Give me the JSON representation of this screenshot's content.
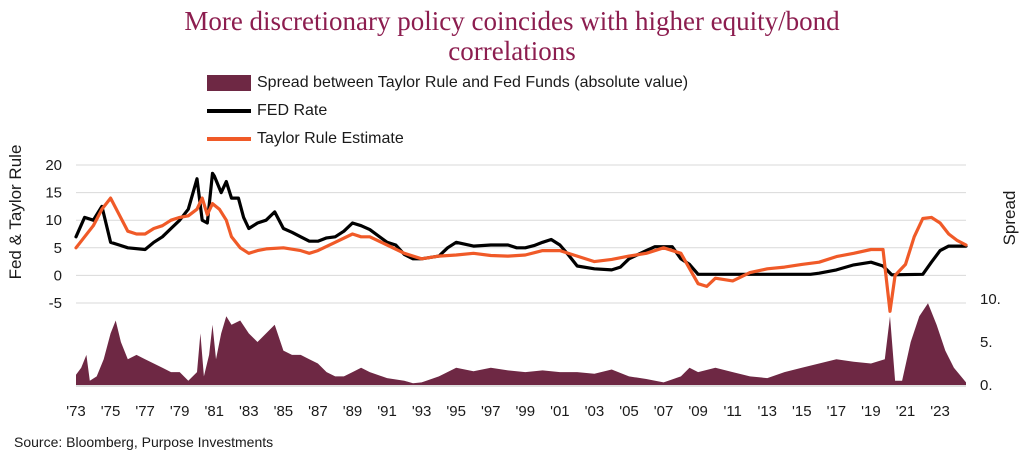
{
  "title": [
    "More discretionary policy coincides with higher equity/bond",
    "correlations"
  ],
  "source": "Source: Bloomberg, Purpose Investments",
  "colors": {
    "title": "#8c1d4f",
    "spread": "#6e2844",
    "fed": "#000000",
    "taylor": "#f05a28"
  },
  "legend": [
    {
      "key": "spread",
      "label": "Spread between Taylor Rule and Fed Funds (absolute value)",
      "kind": "area"
    },
    {
      "key": "fed",
      "label": "FED Rate",
      "kind": "line"
    },
    {
      "key": "taylor",
      "label": "Taylor Rule Estimate",
      "kind": "line"
    }
  ],
  "chart_data": {
    "type": "line",
    "left_axis": {
      "title": "Fed & Taylor Rule",
      "ticks": [
        "20",
        "15",
        "10",
        "5",
        "0",
        "-5"
      ],
      "range": [
        -5,
        20
      ]
    },
    "right_axis": {
      "title": "Spread",
      "ticks": [
        "10.",
        "5.",
        "0."
      ],
      "range": [
        0,
        10
      ]
    },
    "x_ticks": [
      "'73",
      "'75",
      "'77",
      "'79",
      "'81",
      "'83",
      "'85",
      "'87",
      "'89",
      "'91",
      "'93",
      "'95",
      "'97",
      "'99",
      "'01",
      "'03",
      "'05",
      "'07",
      "'09",
      "'11",
      "'13",
      "'15",
      "'17",
      "'19",
      "'21",
      "'23"
    ],
    "x_range": [
      1973,
      2024.5
    ],
    "series": [
      {
        "name": "FED Rate",
        "key": "fed",
        "points": [
          [
            1973,
            7
          ],
          [
            1973.5,
            10.5
          ],
          [
            1974,
            10
          ],
          [
            1974.5,
            12.5
          ],
          [
            1975,
            6
          ],
          [
            1975.5,
            5.5
          ],
          [
            1976,
            5
          ],
          [
            1977,
            4.7
          ],
          [
            1977.5,
            6
          ],
          [
            1978,
            7
          ],
          [
            1978.5,
            8.5
          ],
          [
            1979,
            10
          ],
          [
            1979.5,
            12
          ],
          [
            1980,
            17.5
          ],
          [
            1980.3,
            10
          ],
          [
            1980.6,
            9.5
          ],
          [
            1980.9,
            18.5
          ],
          [
            1981,
            18
          ],
          [
            1981.4,
            15
          ],
          [
            1981.7,
            17
          ],
          [
            1982,
            14
          ],
          [
            1982.4,
            14
          ],
          [
            1982.7,
            10.5
          ],
          [
            1983,
            8.5
          ],
          [
            1983.5,
            9.5
          ],
          [
            1984,
            10
          ],
          [
            1984.5,
            11.5
          ],
          [
            1985,
            8.5
          ],
          [
            1985.5,
            7.8
          ],
          [
            1986,
            7
          ],
          [
            1986.5,
            6.2
          ],
          [
            1987,
            6.2
          ],
          [
            1987.5,
            6.8
          ],
          [
            1988,
            7
          ],
          [
            1988.5,
            8
          ],
          [
            1989,
            9.5
          ],
          [
            1989.5,
            9
          ],
          [
            1990,
            8.3
          ],
          [
            1991,
            6
          ],
          [
            1991.5,
            5.5
          ],
          [
            1992,
            3.8
          ],
          [
            1992.5,
            3
          ],
          [
            1993,
            3
          ],
          [
            1994,
            3.5
          ],
          [
            1994.5,
            5
          ],
          [
            1995,
            6
          ],
          [
            1996,
            5.3
          ],
          [
            1997,
            5.5
          ],
          [
            1998,
            5.5
          ],
          [
            1998.5,
            5
          ],
          [
            1999,
            5
          ],
          [
            1999.5,
            5.4
          ],
          [
            2000,
            6
          ],
          [
            2000.5,
            6.5
          ],
          [
            2001,
            5.5
          ],
          [
            2001.5,
            3.7
          ],
          [
            2002,
            1.7
          ],
          [
            2003,
            1.2
          ],
          [
            2004,
            1
          ],
          [
            2004.5,
            1.5
          ],
          [
            2005,
            3
          ],
          [
            2006,
            4.5
          ],
          [
            2006.5,
            5.2
          ],
          [
            2007.5,
            5.2
          ],
          [
            2008,
            3
          ],
          [
            2008.5,
            2
          ],
          [
            2009,
            0.2
          ],
          [
            2015.5,
            0.2
          ],
          [
            2016,
            0.4
          ],
          [
            2017,
            1
          ],
          [
            2018,
            1.9
          ],
          [
            2019,
            2.4
          ],
          [
            2019.7,
            1.7
          ],
          [
            2020.2,
            0.1
          ],
          [
            2022,
            0.2
          ],
          [
            2022.5,
            2.4
          ],
          [
            2023,
            4.5
          ],
          [
            2023.5,
            5.3
          ],
          [
            2024.5,
            5.3
          ]
        ]
      },
      {
        "name": "Taylor Rule Estimate",
        "key": "taylor",
        "points": [
          [
            1973,
            5
          ],
          [
            1973.5,
            7
          ],
          [
            1974,
            9
          ],
          [
            1974.5,
            12
          ],
          [
            1975,
            14
          ],
          [
            1975.5,
            11
          ],
          [
            1976,
            8
          ],
          [
            1976.5,
            7.5
          ],
          [
            1977,
            7.5
          ],
          [
            1977.5,
            8.5
          ],
          [
            1978,
            9
          ],
          [
            1978.5,
            10
          ],
          [
            1979,
            10.5
          ],
          [
            1979.5,
            10.8
          ],
          [
            1980,
            12
          ],
          [
            1980.3,
            14
          ],
          [
            1980.6,
            11
          ],
          [
            1980.9,
            13
          ],
          [
            1981.3,
            12
          ],
          [
            1981.7,
            10
          ],
          [
            1982,
            7
          ],
          [
            1982.5,
            5
          ],
          [
            1983,
            4
          ],
          [
            1983.5,
            4.5
          ],
          [
            1984,
            4.8
          ],
          [
            1985,
            5
          ],
          [
            1986,
            4.5
          ],
          [
            1986.5,
            4
          ],
          [
            1987,
            4.5
          ],
          [
            1988,
            6
          ],
          [
            1989,
            7.5
          ],
          [
            1989.5,
            7
          ],
          [
            1990,
            7
          ],
          [
            1991,
            5.5
          ],
          [
            1992,
            4
          ],
          [
            1993,
            3
          ],
          [
            1994,
            3.5
          ],
          [
            1995,
            3.7
          ],
          [
            1996,
            4
          ],
          [
            1997,
            3.6
          ],
          [
            1998,
            3.5
          ],
          [
            1999,
            3.7
          ],
          [
            2000,
            4.5
          ],
          [
            2001,
            4.5
          ],
          [
            2002,
            3.5
          ],
          [
            2003,
            2.5
          ],
          [
            2004,
            2.9
          ],
          [
            2005,
            3.5
          ],
          [
            2006,
            4
          ],
          [
            2007,
            5
          ],
          [
            2008,
            4
          ],
          [
            2009,
            -1.5
          ],
          [
            2009.5,
            -2
          ],
          [
            2010,
            -0.5
          ],
          [
            2011,
            -1
          ],
          [
            2012,
            0.5
          ],
          [
            2013,
            1.2
          ],
          [
            2014,
            1.5
          ],
          [
            2015,
            2
          ],
          [
            2016,
            2.4
          ],
          [
            2017,
            3.4
          ],
          [
            2018,
            4
          ],
          [
            2019,
            4.7
          ],
          [
            2019.7,
            4.7
          ],
          [
            2020.1,
            -6.5
          ],
          [
            2020.4,
            0
          ],
          [
            2021,
            2
          ],
          [
            2021.5,
            7
          ],
          [
            2022,
            10.3
          ],
          [
            2022.5,
            10.5
          ],
          [
            2023,
            9.5
          ],
          [
            2023.5,
            7.5
          ],
          [
            2024,
            6.3
          ],
          [
            2024.5,
            5.5
          ]
        ]
      },
      {
        "name": "Spread between Taylor Rule and Fed Funds (absolute value)",
        "key": "spread",
        "points": [
          [
            1973,
            1.2
          ],
          [
            1973.3,
            2
          ],
          [
            1973.6,
            3.5
          ],
          [
            1973.8,
            0.5
          ],
          [
            1974.2,
            1
          ],
          [
            1974.6,
            3
          ],
          [
            1975,
            6
          ],
          [
            1975.3,
            7.5
          ],
          [
            1975.6,
            5
          ],
          [
            1976,
            3
          ],
          [
            1976.5,
            3.5
          ],
          [
            1977,
            3
          ],
          [
            1978,
            2
          ],
          [
            1978.5,
            1.5
          ],
          [
            1979,
            1.5
          ],
          [
            1979.5,
            0.5
          ],
          [
            1980,
            1.5
          ],
          [
            1980.2,
            6
          ],
          [
            1980.4,
            1
          ],
          [
            1980.7,
            3.5
          ],
          [
            1980.9,
            7
          ],
          [
            1981.1,
            3
          ],
          [
            1981.4,
            6
          ],
          [
            1981.7,
            8
          ],
          [
            1982,
            7
          ],
          [
            1982.5,
            7.5
          ],
          [
            1983,
            6
          ],
          [
            1983.5,
            5
          ],
          [
            1984,
            6
          ],
          [
            1984.5,
            7
          ],
          [
            1985,
            4
          ],
          [
            1985.5,
            3.5
          ],
          [
            1986,
            3.5
          ],
          [
            1986.5,
            3
          ],
          [
            1987,
            2.5
          ],
          [
            1987.5,
            1.5
          ],
          [
            1988,
            1
          ],
          [
            1988.5,
            1
          ],
          [
            1989,
            1.5
          ],
          [
            1989.5,
            2
          ],
          [
            1990,
            1.5
          ],
          [
            1991,
            0.8
          ],
          [
            1992,
            0.5
          ],
          [
            1992.5,
            0.2
          ],
          [
            1993,
            0.3
          ],
          [
            1994,
            1
          ],
          [
            1995,
            2
          ],
          [
            1996,
            1.6
          ],
          [
            1997,
            2
          ],
          [
            1998,
            1.7
          ],
          [
            1999,
            1.5
          ],
          [
            2000,
            1.7
          ],
          [
            2001,
            1.5
          ],
          [
            2002,
            1.5
          ],
          [
            2003,
            1.3
          ],
          [
            2004,
            1.8
          ],
          [
            2005,
            1
          ],
          [
            2006,
            0.7
          ],
          [
            2007,
            0.3
          ],
          [
            2008,
            1
          ],
          [
            2008.5,
            2
          ],
          [
            2009,
            1.5
          ],
          [
            2010,
            2
          ],
          [
            2011,
            1.5
          ],
          [
            2012,
            1
          ],
          [
            2013,
            0.8
          ],
          [
            2014,
            1.5
          ],
          [
            2015,
            2
          ],
          [
            2016,
            2.5
          ],
          [
            2017,
            3
          ],
          [
            2018,
            2.7
          ],
          [
            2019,
            2.5
          ],
          [
            2019.8,
            3
          ],
          [
            2020.1,
            8
          ],
          [
            2020.4,
            0.5
          ],
          [
            2020.8,
            0.5
          ],
          [
            2021.3,
            5
          ],
          [
            2021.8,
            8
          ],
          [
            2022.3,
            9.5
          ],
          [
            2022.8,
            7
          ],
          [
            2023.3,
            4
          ],
          [
            2023.8,
            2
          ],
          [
            2024.3,
            0.8
          ],
          [
            2024.5,
            0.3
          ]
        ]
      }
    ]
  }
}
